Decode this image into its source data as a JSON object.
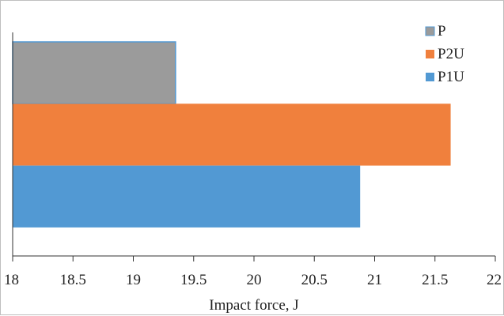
{
  "chart_data": {
    "type": "bar",
    "orientation": "horizontal",
    "title": "",
    "xlabel": "Impact force, J",
    "ylabel": "",
    "xlim": [
      18,
      22
    ],
    "x_ticks": [
      "18",
      "18.5",
      "19",
      "19.5",
      "20",
      "20.5",
      "21",
      "21.5",
      "22"
    ],
    "grid": false,
    "legend_position": "top-right",
    "series": [
      {
        "name": "P",
        "value": 19.35,
        "color": "#9b9b9b"
      },
      {
        "name": "P2U",
        "value": 21.63,
        "color": "#f0803d"
      },
      {
        "name": "P1U",
        "value": 20.88,
        "color": "#5299d3"
      }
    ]
  }
}
